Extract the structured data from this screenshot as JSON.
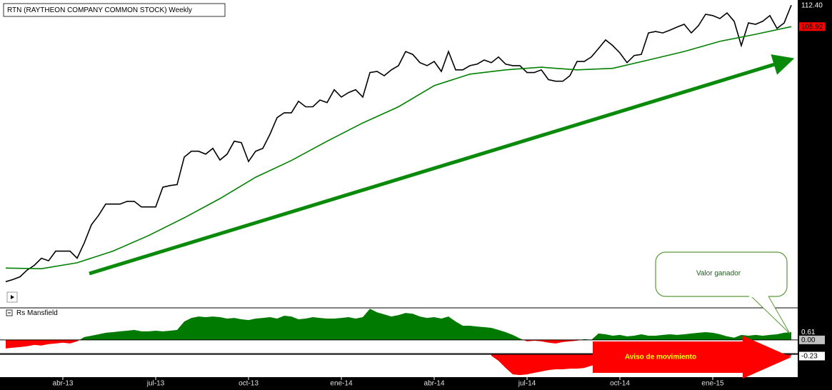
{
  "chart_data": [
    {
      "type": "line",
      "title": "RTN (RAYTHEON COMPANY COMMON STOCK) Weekly",
      "log_scale": true,
      "xlim": [
        -0.8,
        110.9
      ],
      "ylim": [
        51,
        114
      ],
      "yticks": [
        {
          "value": 112.4,
          "label": "112.40"
        },
        105.92
      ],
      "ytick_colors": [
        "#000000",
        "#ff0000"
      ],
      "annotations": [
        "Valor ganador"
      ],
      "x": [
        0,
        1,
        2,
        3,
        4,
        5,
        6,
        7,
        8,
        9,
        10,
        11,
        12,
        13,
        14,
        15,
        16,
        17,
        18,
        19,
        20,
        21,
        22,
        23,
        24,
        25,
        26,
        27,
        28,
        29,
        30,
        31,
        32,
        33,
        34,
        35,
        36,
        37,
        38,
        39,
        40,
        41,
        42,
        43,
        44,
        45,
        46,
        47,
        48,
        49,
        50,
        51,
        52,
        53,
        54,
        55,
        56,
        57,
        58,
        59,
        60,
        61,
        62,
        63,
        64,
        65,
        66,
        67,
        68,
        69,
        70,
        71,
        72,
        73,
        74,
        75,
        76,
        77,
        78,
        79,
        80,
        81,
        82,
        83,
        84,
        85,
        86,
        87,
        88,
        89,
        90,
        91,
        92,
        93,
        94,
        95,
        96,
        97,
        98,
        99,
        100,
        101,
        102,
        103,
        104,
        105,
        106,
        107,
        108,
        109,
        110
      ],
      "series": [
        {
          "color": "#000000",
          "values": [
            52.4,
            52.7,
            53.1,
            54.1,
            54.8,
            55.9,
            55.5,
            57.0,
            57.0,
            57.0,
            55.9,
            58.3,
            61.3,
            62.9,
            64.9,
            64.9,
            64.9,
            65.4,
            65.4,
            64.4,
            64.4,
            64.4,
            68.0,
            68.3,
            68.5,
            73.9,
            75.1,
            75.1,
            74.5,
            75.7,
            73.3,
            74.5,
            77.2,
            76.9,
            73.0,
            75.1,
            75.7,
            78.7,
            82.4,
            83.5,
            83.5,
            86.2,
            84.9,
            84.9,
            86.5,
            85.9,
            89.0,
            87.2,
            88.3,
            89.0,
            87.2,
            93.3,
            93.6,
            92.5,
            94.0,
            95.1,
            98.9,
            98.1,
            95.9,
            95.1,
            96.2,
            93.6,
            98.9,
            94.0,
            94.0,
            95.1,
            95.5,
            96.6,
            95.9,
            97.4,
            95.5,
            95.1,
            95.1,
            93.3,
            93.3,
            94.0,
            91.5,
            91.1,
            91.1,
            92.5,
            96.2,
            96.2,
            97.4,
            99.7,
            102.1,
            100.5,
            98.5,
            95.9,
            97.8,
            98.1,
            104.1,
            104.5,
            104.1,
            104.9,
            105.8,
            106.6,
            104.1,
            106.2,
            109.6,
            109.2,
            108.3,
            110.0,
            107.5,
            100.5,
            107.0,
            106.6,
            107.5,
            109.2,
            105.4,
            107.0,
            112.4
          ]
        },
        {
          "color": "#008000",
          "x": [
            0,
            5,
            10,
            15,
            20,
            25,
            30,
            35,
            40,
            45,
            50,
            55,
            60,
            65,
            70,
            75,
            80,
            85,
            90,
            95,
            100,
            105,
            110
          ],
          "values": [
            54.4,
            54.3,
            55.2,
            57.0,
            59.5,
            62.5,
            65.9,
            69.9,
            73.2,
            77.2,
            81.2,
            84.9,
            90.0,
            92.9,
            94.0,
            94.7,
            94.0,
            94.4,
            96.6,
            98.9,
            101.7,
            103.7,
            105.92
          ]
        }
      ]
    },
    {
      "type": "area",
      "title": "Rs Mansfield",
      "xlim": [
        -0.8,
        110.9
      ],
      "ylim": [
        -0.9,
        2.45
      ],
      "yticks": [
        0.61,
        {
          "value": 0,
          "label": "0.00"
        }
      ],
      "ytick_colors": [
        "#000000",
        "#c0c0c0"
      ],
      "color": "#007a00",
      "negative_color": "#ff0000",
      "x": [
        0,
        1,
        2,
        3,
        4,
        5,
        6,
        7,
        8,
        9,
        10,
        11,
        12,
        13,
        14,
        15,
        16,
        17,
        18,
        19,
        20,
        21,
        22,
        23,
        24,
        25,
        26,
        27,
        28,
        29,
        30,
        31,
        32,
        33,
        34,
        35,
        36,
        37,
        38,
        39,
        40,
        41,
        42,
        43,
        44,
        45,
        46,
        47,
        48,
        49,
        50,
        51,
        52,
        53,
        54,
        55,
        56,
        57,
        58,
        59,
        60,
        61,
        62,
        63,
        64,
        65,
        66,
        67,
        68,
        69,
        70,
        71,
        72,
        73,
        74,
        75,
        76,
        77,
        78,
        79,
        80,
        81,
        82,
        83,
        84,
        85,
        86,
        87,
        88,
        89,
        90,
        91,
        92,
        93,
        94,
        95,
        96,
        97,
        98,
        99,
        100,
        101,
        102,
        103,
        104,
        105,
        106,
        107,
        108,
        109,
        110
      ],
      "values": [
        -0.67,
        -0.61,
        -0.56,
        -0.5,
        -0.39,
        -0.44,
        -0.33,
        -0.28,
        -0.22,
        -0.28,
        -0.11,
        0.22,
        0.33,
        0.44,
        0.56,
        0.61,
        0.67,
        0.72,
        0.78,
        0.67,
        0.67,
        0.72,
        0.67,
        0.72,
        0.78,
        1.44,
        1.72,
        1.83,
        1.78,
        1.83,
        1.78,
        1.67,
        1.72,
        1.61,
        1.55,
        1.67,
        1.72,
        1.78,
        1.67,
        1.89,
        1.83,
        1.61,
        1.67,
        1.78,
        1.72,
        1.67,
        1.67,
        1.72,
        1.78,
        1.67,
        1.78,
        2.44,
        2.16,
        2.0,
        1.83,
        1.94,
        2.11,
        2.05,
        1.83,
        1.72,
        1.78,
        1.67,
        1.83,
        1.44,
        1.11,
        1.11,
        1.05,
        1.0,
        0.94,
        0.78,
        0.61,
        0.39,
        0.11,
        -0.11,
        -0.06,
        -0.11,
        -0.22,
        -0.28,
        -0.17,
        -0.11,
        -0.06,
        0.06,
        0,
        0.5,
        0.44,
        0.33,
        0.39,
        0.28,
        0.33,
        0.44,
        0.33,
        0.33,
        0.39,
        0.44,
        0.39,
        0.44,
        0.5,
        0.56,
        0.61,
        0.56,
        0.44,
        0.28,
        0.17,
        0.39,
        0.33,
        0.39,
        0.33,
        0.39,
        0.44,
        0.56,
        0.61
      ]
    },
    {
      "type": "area",
      "xlim": [
        -0.8,
        110.9
      ],
      "ylim": [
        -3,
        0.1
      ],
      "yticks": [
        -0.23
      ],
      "ytick_colors": [
        "#ffffff"
      ],
      "color": "#ff0000",
      "negative_color": "#ff0000",
      "annotations": [
        "Aviso de movimiento"
      ],
      "xticks": [
        {
          "value": 8,
          "label": "abr-13"
        },
        {
          "value": 21,
          "label": "jul-13"
        },
        {
          "value": 34,
          "label": "oct-13"
        },
        {
          "value": 47,
          "label": "ene-14"
        },
        {
          "value": 60,
          "label": "abr-14"
        },
        {
          "value": 73,
          "label": "jul-14"
        },
        {
          "value": 86,
          "label": "oct-14"
        },
        {
          "value": 99,
          "label": "ene-15"
        }
      ],
      "x": [
        68,
        69,
        70,
        71,
        72,
        73,
        74,
        75,
        76,
        77,
        78,
        79,
        80,
        81,
        82,
        83,
        84,
        85,
        86,
        87,
        88,
        89,
        90,
        91,
        92,
        93,
        94,
        95,
        96,
        97,
        98,
        99,
        100,
        101,
        102,
        103,
        104,
        105,
        106,
        107,
        108,
        109,
        110
      ],
      "values": [
        -0.19,
        -0.85,
        -1.79,
        -2.63,
        -2.73,
        -2.63,
        -2.44,
        -2.26,
        -2.07,
        -1.97,
        -1.97,
        -1.88,
        -1.88,
        -1.79,
        -1.5,
        -1.32,
        -1.13,
        -1.13,
        -0.94,
        -0.85,
        -0.94,
        -1.03,
        -0.85,
        -0.85,
        -0.94,
        -0.94,
        -0.85,
        -0.75,
        -0.75,
        -0.85,
        -0.75,
        -0.85,
        -0.85,
        -0.85,
        -0.75,
        -0.85,
        -0.75,
        -0.85,
        -0.75,
        -0.66,
        -0.38,
        -0.28,
        -0.23
      ]
    }
  ]
}
